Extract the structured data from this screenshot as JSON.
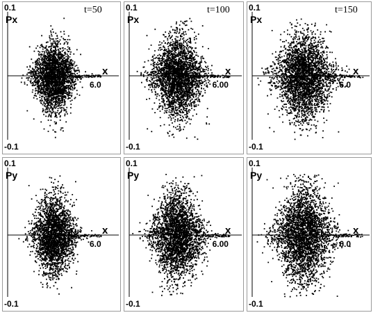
{
  "chart_data": {
    "type": "scatter",
    "grid": false,
    "legend": "none",
    "colors": {
      "points": "#000000",
      "axes": "#000000",
      "frame": "#9a9a9a",
      "background": "#ffffff"
    },
    "panels": [
      {
        "row": 0,
        "col": 0,
        "time_label": "t=50",
        "y_label": "Px",
        "ylim": [
          -0.1,
          0.1
        ],
        "y_max_label": "0.1",
        "y_min_label": "-0.1",
        "x_label": "x",
        "x_tick_label": "6.0",
        "x_tick_value": 6.0,
        "xlim": [
          -0.5,
          7.5
        ],
        "cloud": {
          "center_x": 2.8,
          "spread_x": 1.3,
          "spread_y": 0.028,
          "tail_to": 6.2,
          "points": 2600,
          "seed": 11
        }
      },
      {
        "row": 0,
        "col": 1,
        "time_label": "t=100",
        "y_label": "Px",
        "ylim": [
          -0.1,
          0.1
        ],
        "y_max_label": "0.1",
        "y_min_label": "-0.1",
        "x_label": "x",
        "x_tick_label": "6.00",
        "x_tick_value": 6.0,
        "xlim": [
          -0.5,
          7.5
        ],
        "cloud": {
          "center_x": 2.9,
          "spread_x": 1.55,
          "spread_y": 0.033,
          "tail_to": 6.6,
          "points": 2900,
          "seed": 23
        }
      },
      {
        "row": 0,
        "col": 2,
        "time_label": "t=150",
        "y_label": "Px",
        "ylim": [
          -0.1,
          0.1
        ],
        "y_max_label": "0.1",
        "y_min_label": "-0.1",
        "x_label": "x",
        "x_tick_label": "6.0",
        "x_tick_value": 6.0,
        "xlim": [
          -0.5,
          7.5
        ],
        "cloud": {
          "center_x": 3.0,
          "spread_x": 1.7,
          "spread_y": 0.036,
          "tail_to": 7.0,
          "points": 3100,
          "seed": 37
        }
      },
      {
        "row": 1,
        "col": 0,
        "time_label": "",
        "y_label": "Py",
        "ylim": [
          -0.1,
          0.1
        ],
        "y_max_label": "0.1",
        "y_min_label": "-0.1",
        "x_label": "x",
        "x_tick_label": "6.0",
        "x_tick_value": 6.0,
        "xlim": [
          -0.5,
          7.5
        ],
        "cloud": {
          "center_x": 2.8,
          "spread_x": 1.3,
          "spread_y": 0.032,
          "tail_to": 6.2,
          "points": 2600,
          "seed": 41
        }
      },
      {
        "row": 1,
        "col": 1,
        "time_label": "",
        "y_label": "Py",
        "ylim": [
          -0.1,
          0.1
        ],
        "y_max_label": "0.1",
        "y_min_label": "-0.1",
        "x_label": "x",
        "x_tick_label": "6.00",
        "x_tick_value": 6.0,
        "xlim": [
          -0.5,
          7.5
        ],
        "cloud": {
          "center_x": 2.9,
          "spread_x": 1.55,
          "spread_y": 0.036,
          "tail_to": 6.6,
          "points": 2900,
          "seed": 53
        }
      },
      {
        "row": 1,
        "col": 2,
        "time_label": "",
        "y_label": "Py",
        "ylim": [
          -0.1,
          0.1
        ],
        "y_max_label": "0.1",
        "y_min_label": "-0.1",
        "x_label": "x",
        "x_tick_label": "6.0",
        "x_tick_value": 6.0,
        "xlim": [
          -0.5,
          7.5
        ],
        "cloud": {
          "center_x": 3.0,
          "spread_x": 1.7,
          "spread_y": 0.04,
          "tail_to": 7.0,
          "points": 3100,
          "seed": 67
        }
      }
    ]
  }
}
